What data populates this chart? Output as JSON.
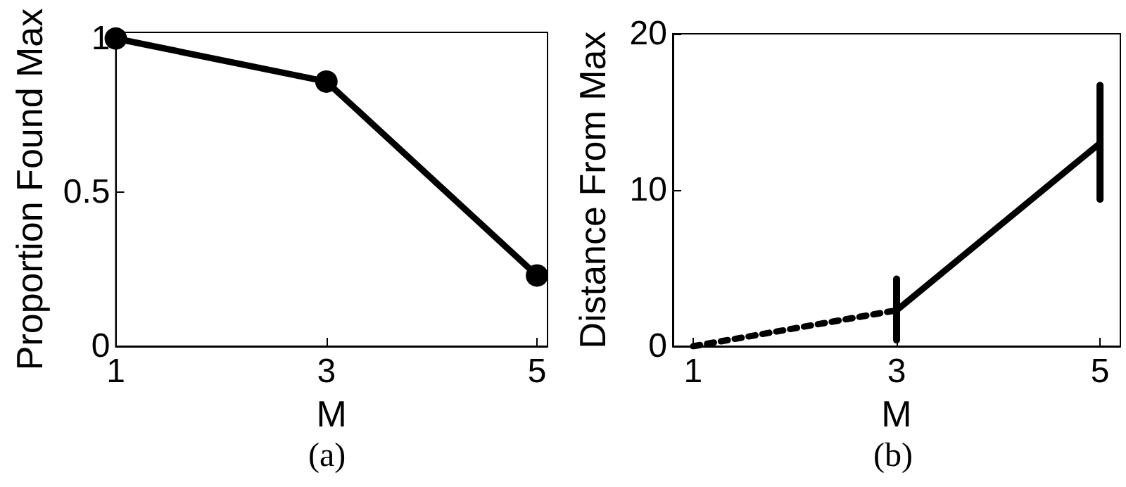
{
  "chart_data": [
    {
      "type": "line",
      "xlabel": "M",
      "ylabel": "Proportion Found Max",
      "x": [
        1,
        3,
        5
      ],
      "values": [
        1,
        0.86,
        0.23
      ],
      "color": "#000000",
      "xlim": [
        1,
        5.1
      ],
      "ylim": [
        0,
        1.02
      ],
      "xticks": [
        1,
        3,
        5
      ],
      "yticks": [
        0,
        0.5,
        1
      ],
      "marker": "circle",
      "line_style": "solid",
      "grid": false,
      "annotations": [
        "(a)"
      ]
    },
    {
      "type": "line",
      "xlabel": "M",
      "ylabel": "Distance From Max",
      "series": [
        {
          "x": [
            1,
            3
          ],
          "values": [
            0,
            2.3
          ],
          "color": "#000000",
          "line_style": "dotted"
        },
        {
          "x": [
            3,
            5
          ],
          "values": [
            2.3,
            13
          ],
          "errors": [
            [
              0.4,
              4.3
            ],
            [
              9.4,
              16.7
            ]
          ],
          "color": "#000000",
          "line_style": "solid"
        }
      ],
      "xlim": [
        0.8,
        5.2
      ],
      "ylim": [
        0,
        20
      ],
      "xticks": [
        1,
        3,
        5
      ],
      "yticks": [
        0,
        10,
        20
      ],
      "marker": "none",
      "grid": false,
      "annotations": [
        "(b)"
      ]
    }
  ]
}
